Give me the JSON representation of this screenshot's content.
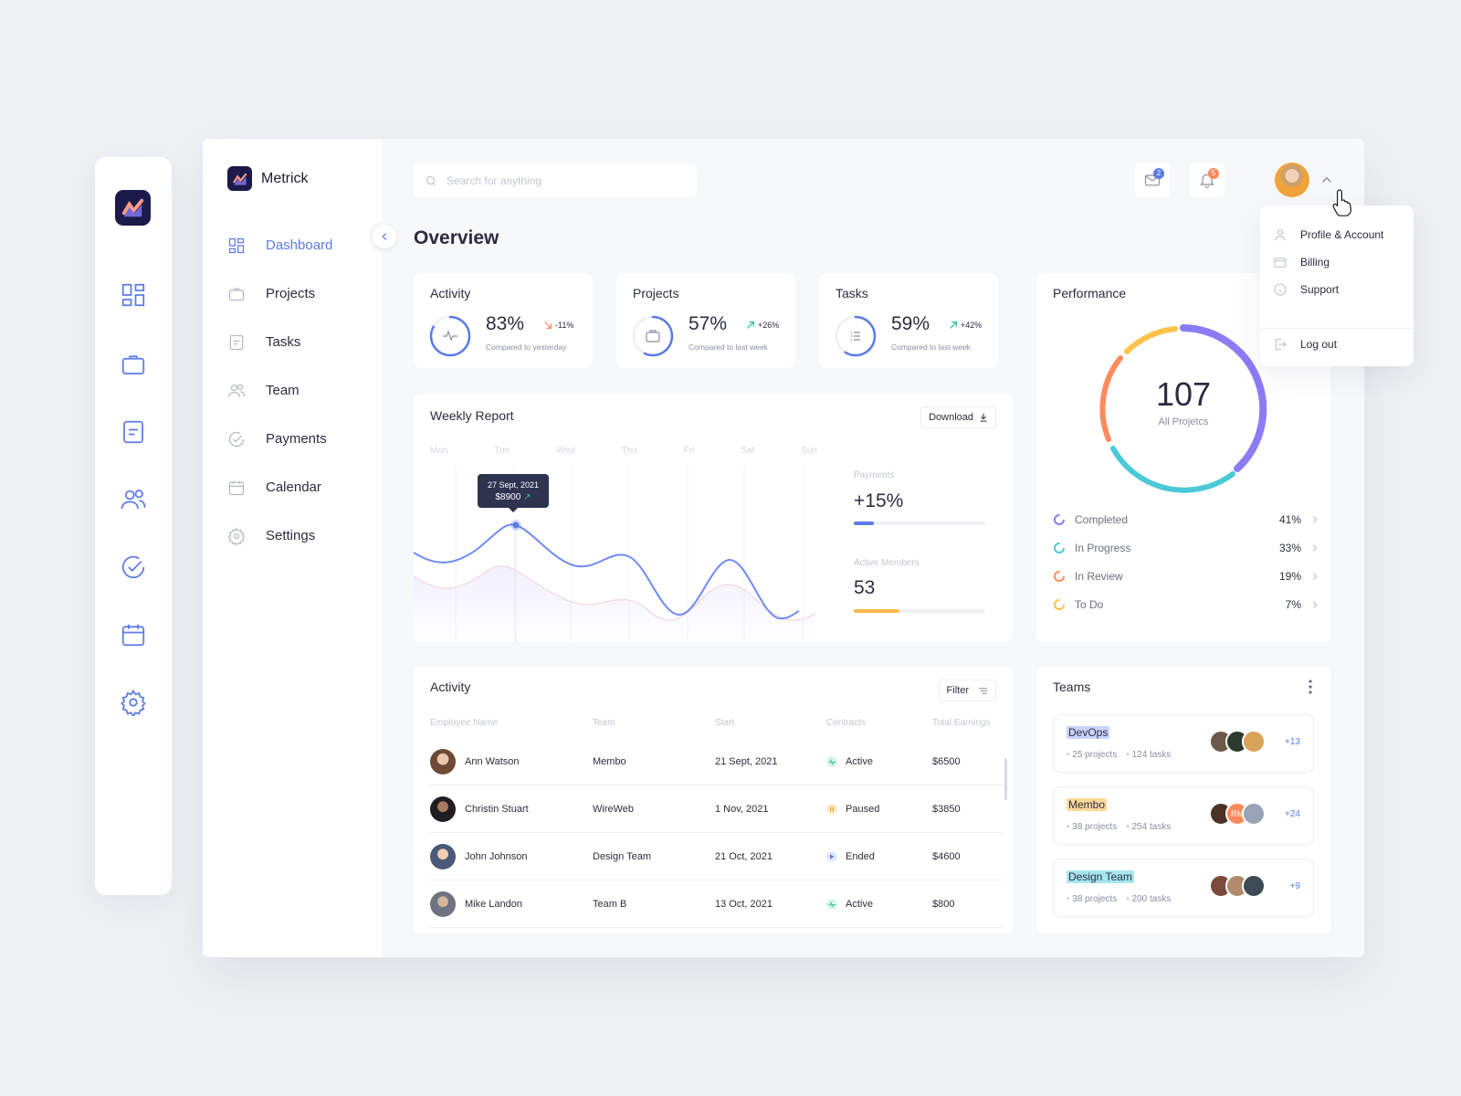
{
  "brand": {
    "name": "Metrick"
  },
  "search": {
    "placeholder": "Search for anything"
  },
  "header": {
    "title": "Overview",
    "mail_badge": "2",
    "bell_badge": "5"
  },
  "sidebar": {
    "items": [
      {
        "label": "Dashboard",
        "icon": "dashboard-icon",
        "active": true
      },
      {
        "label": "Projects",
        "icon": "briefcase-icon"
      },
      {
        "label": "Tasks",
        "icon": "tasks-icon"
      },
      {
        "label": "Team",
        "icon": "team-icon"
      },
      {
        "label": "Payments",
        "icon": "check-circle-icon"
      },
      {
        "label": "Calendar",
        "icon": "calendar-icon"
      },
      {
        "label": "Settings",
        "icon": "gear-icon"
      }
    ]
  },
  "kpis": [
    {
      "title": "Activity",
      "value": "83%",
      "change": "-11%",
      "direction": "down",
      "sub": "Compared to yesterday",
      "progress": 0.83
    },
    {
      "title": "Projects",
      "value": "57%",
      "change": "+26%",
      "direction": "up",
      "sub": "Compared to last week",
      "progress": 0.57
    },
    {
      "title": "Tasks",
      "value": "59%",
      "change": "+42%",
      "direction": "up",
      "sub": "Compared to last week",
      "progress": 0.59
    }
  ],
  "weekly": {
    "title": "Weekly Report",
    "download": "Download",
    "days": [
      "Mon",
      "Tue",
      "Wed",
      "Thu",
      "Fri",
      "Sat",
      "Sun"
    ],
    "tooltip_date": "27 Sept, 2021",
    "tooltip_amount": "$8900",
    "payments_label": "Payments",
    "payments_value": "+15%",
    "payments_progress": 0.15,
    "members_label": "Active Members",
    "members_value": "53",
    "members_progress": 0.35
  },
  "performance": {
    "title": "Performance",
    "total": "107",
    "total_label": "All Projetcs",
    "legend": [
      {
        "name": "Completed",
        "pct": "41%",
        "color": "#8b7cf6"
      },
      {
        "name": "In Progress",
        "pct": "33%",
        "color": "#4cc9d8"
      },
      {
        "name": "In Review",
        "pct": "19%",
        "color": "#ff8a5b"
      },
      {
        "name": "To Do",
        "pct": "7%",
        "color": "#ffc24a"
      }
    ]
  },
  "activity": {
    "title": "Activity",
    "filter": "Filter",
    "columns": [
      "Employee Name",
      "Team",
      "Start",
      "Contracts",
      "Total Earnings"
    ],
    "rows": [
      {
        "name": "Ann Watson",
        "team": "Membo",
        "start": "21 Sept, 2021",
        "contract": "Active",
        "earnings": "$6500"
      },
      {
        "name": "Christin Stuart",
        "team": "WireWeb",
        "start": "1 Nov, 2021",
        "contract": "Paused",
        "earnings": "$3850"
      },
      {
        "name": "John Johnson",
        "team": "Design Team",
        "start": "21 Oct, 2021",
        "contract": "Ended",
        "earnings": "$4600"
      },
      {
        "name": "Mike Landon",
        "team": "Team B",
        "start": "13 Oct, 2021",
        "contract": "Active",
        "earnings": "$800"
      }
    ]
  },
  "teams": {
    "title": "Teams",
    "items": [
      {
        "name": "DevOps",
        "projects": "25 projects",
        "tasks": "124 tasks",
        "more": "+13",
        "highlight": "#c9d3ff"
      },
      {
        "name": "Membo",
        "projects": "38 projects",
        "tasks": "254 tasks",
        "more": "+24",
        "highlight": "#ffd99a"
      },
      {
        "name": "Design Team",
        "projects": "38 projects",
        "tasks": "200 tasks",
        "more": "+9",
        "highlight": "#a8e6ee"
      }
    ],
    "initials": "RM"
  },
  "dropdown": {
    "items": [
      "Profile & Account",
      "Billing",
      "Support"
    ],
    "logout": "Log out"
  }
}
